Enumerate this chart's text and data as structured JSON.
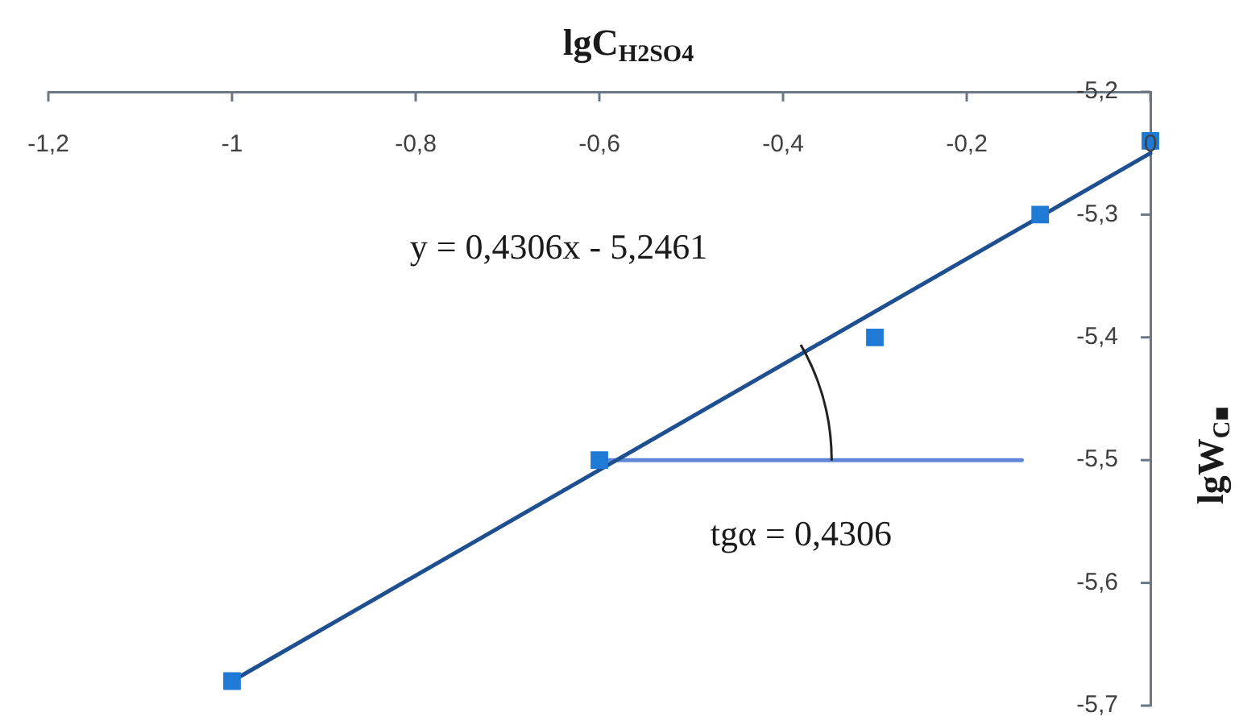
{
  "chart_data": {
    "type": "scatter",
    "xlabel": "lgC$_{H2SO4}$",
    "ylabel": "lgW$_{C■}$",
    "annotations": [
      "y = 0,4306x - 5,2461",
      "tgα = 0,4306"
    ],
    "xlim": [
      -1.2,
      0
    ],
    "xticks": [
      {
        "value": -1.2,
        "label": "-1,2"
      },
      -1,
      {
        "value": -0.8,
        "label": "-0,8"
      },
      {
        "value": -0.6,
        "label": "-0,6"
      },
      {
        "value": -0.4,
        "label": "-0,4"
      },
      {
        "value": -0.2,
        "label": "-0,2"
      },
      0
    ],
    "ylim": [
      -5.7,
      -5.2
    ],
    "yticks": [
      {
        "value": -5.7,
        "label": "-5,7"
      },
      {
        "value": -5.6,
        "label": "-5,6"
      },
      {
        "value": -5.5,
        "label": "-5,5"
      },
      {
        "value": -5.4,
        "label": "-5,4"
      },
      {
        "value": -5.3,
        "label": "-5,3"
      },
      {
        "value": -5.2,
        "label": "-5,2"
      }
    ],
    "marker": "square",
    "series": [
      {
        "color": "#1f7ad6",
        "x": [
          -1,
          -0.6,
          -0.3,
          -0.12,
          0
        ],
        "values": [
          -5.68,
          -5.5,
          -5.4,
          -5.3,
          -5.24
        ]
      },
      {
        "type": "line",
        "color": "#1d4f91",
        "marker": "none",
        "x": [
          -1,
          0
        ],
        "values": [
          -5.68,
          -5.25
        ]
      },
      {
        "type": "line",
        "color": "#5f86d8",
        "marker": "none",
        "x": [
          -0.6,
          -0.14
        ],
        "values": [
          -5.5,
          -5.5
        ]
      }
    ]
  }
}
